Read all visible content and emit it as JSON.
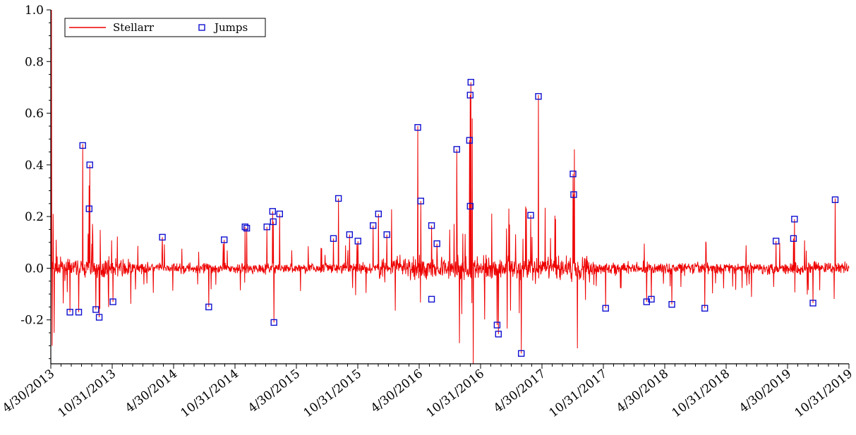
{
  "chart_data": {
    "type": "line",
    "title": "",
    "xlabel": "",
    "ylabel": "",
    "x_range": [
      "2013-04-30",
      "2019-10-31"
    ],
    "ylim": [
      -0.37,
      1.0
    ],
    "yticks": [
      1.0,
      0.8,
      0.6,
      0.4,
      0.2,
      0.0,
      -0.2
    ],
    "ytick_labels": [
      "1.0",
      "0.8",
      "0.6",
      "0.4",
      "0.2",
      "0.0",
      "-0.2"
    ],
    "xtick_labels": [
      "4/30/2013",
      "10/31/2013",
      "4/30/2014",
      "10/31/2014",
      "4/30/2015",
      "10/31/2015",
      "4/30/2016",
      "10/31/2016",
      "4/30/2017",
      "10/31/2017",
      "4/30/2018",
      "10/31/2018",
      "4/30/2019",
      "10/31/2019"
    ],
    "grid": false,
    "legend_position": "top-left",
    "series": [
      {
        "name": "Stellarr",
        "type": "line",
        "color": "#ee0000",
        "spikes": [
          {
            "x": "2013-05-02",
            "y": 1.0
          },
          {
            "x": "2013-05-04",
            "y": -0.3
          },
          {
            "x": "2013-05-07",
            "y": 0.21
          },
          {
            "x": "2013-05-10",
            "y": -0.25
          },
          {
            "x": "2013-05-16",
            "y": 0.11
          },
          {
            "x": "2013-08-03",
            "y": 0.48
          },
          {
            "x": "2013-08-24",
            "y": 0.4
          },
          {
            "x": "2013-08-22",
            "y": 0.32
          },
          {
            "x": "2016-04-26",
            "y": 0.55
          },
          {
            "x": "2016-08-20",
            "y": 0.46
          },
          {
            "x": "2016-08-28",
            "y": -0.29
          },
          {
            "x": "2016-10-01",
            "y": 0.72
          },
          {
            "x": "2016-10-05",
            "y": 0.58
          },
          {
            "x": "2016-10-08",
            "y": -0.37
          },
          {
            "x": "2017-02-28",
            "y": -0.33
          },
          {
            "x": "2017-04-20",
            "y": 0.67
          },
          {
            "x": "2017-08-05",
            "y": 0.46
          },
          {
            "x": "2017-08-14",
            "y": -0.31
          },
          {
            "x": "2019-09-20",
            "y": 0.27
          }
        ],
        "noise_amplitude_by_period": [
          {
            "from": "2013-04-30",
            "to": "2014-01-01",
            "amp": 0.06
          },
          {
            "from": "2014-01-01",
            "to": "2016-01-01",
            "amp": 0.035
          },
          {
            "from": "2016-01-01",
            "to": "2017-10-01",
            "amp": 0.08
          },
          {
            "from": "2017-10-01",
            "to": "2019-10-31",
            "amp": 0.04
          }
        ]
      },
      {
        "name": "Jumps",
        "type": "scatter",
        "marker": "square",
        "color": "#1010d0",
        "points": [
          {
            "x": "2013-08-03",
            "y": 0.475
          },
          {
            "x": "2013-08-24",
            "y": 0.4
          },
          {
            "x": "2013-08-22",
            "y": 0.23
          },
          {
            "x": "2013-06-26",
            "y": -0.17
          },
          {
            "x": "2013-07-22",
            "y": -0.17
          },
          {
            "x": "2013-09-11",
            "y": -0.16
          },
          {
            "x": "2013-09-21",
            "y": -0.19
          },
          {
            "x": "2013-11-01",
            "y": -0.13
          },
          {
            "x": "2014-03-28",
            "y": 0.12
          },
          {
            "x": "2014-08-13",
            "y": -0.15
          },
          {
            "x": "2014-09-28",
            "y": 0.11
          },
          {
            "x": "2014-11-29",
            "y": 0.16
          },
          {
            "x": "2014-12-04",
            "y": 0.155
          },
          {
            "x": "2015-02-02",
            "y": 0.16
          },
          {
            "x": "2015-02-19",
            "y": 0.22
          },
          {
            "x": "2015-02-21",
            "y": 0.18
          },
          {
            "x": "2015-02-23",
            "y": -0.21
          },
          {
            "x": "2015-03-12",
            "y": 0.21
          },
          {
            "x": "2015-08-19",
            "y": 0.115
          },
          {
            "x": "2015-09-03",
            "y": 0.27
          },
          {
            "x": "2015-10-06",
            "y": 0.13
          },
          {
            "x": "2015-10-31",
            "y": 0.105
          },
          {
            "x": "2015-12-15",
            "y": 0.165
          },
          {
            "x": "2015-12-31",
            "y": 0.21
          },
          {
            "x": "2016-01-25",
            "y": 0.13
          },
          {
            "x": "2016-04-26",
            "y": 0.545
          },
          {
            "x": "2016-05-05",
            "y": 0.26
          },
          {
            "x": "2016-06-06",
            "y": 0.165
          },
          {
            "x": "2016-06-06",
            "y": -0.12
          },
          {
            "x": "2016-06-22",
            "y": 0.095
          },
          {
            "x": "2016-08-20",
            "y": 0.46
          },
          {
            "x": "2016-10-01",
            "y": 0.72
          },
          {
            "x": "2016-09-29",
            "y": 0.67
          },
          {
            "x": "2016-09-27",
            "y": 0.495
          },
          {
            "x": "2016-09-29",
            "y": 0.24
          },
          {
            "x": "2016-12-18",
            "y": -0.22
          },
          {
            "x": "2016-12-22",
            "y": -0.255
          },
          {
            "x": "2017-02-28",
            "y": -0.33
          },
          {
            "x": "2017-03-28",
            "y": 0.205
          },
          {
            "x": "2017-04-20",
            "y": 0.665
          },
          {
            "x": "2017-08-01",
            "y": 0.365
          },
          {
            "x": "2017-08-03",
            "y": 0.285
          },
          {
            "x": "2017-11-06",
            "y": -0.155
          },
          {
            "x": "2018-03-08",
            "y": -0.13
          },
          {
            "x": "2018-03-22",
            "y": -0.12
          },
          {
            "x": "2018-05-22",
            "y": -0.14
          },
          {
            "x": "2018-08-28",
            "y": -0.155
          },
          {
            "x": "2019-03-28",
            "y": 0.105
          },
          {
            "x": "2019-05-19",
            "y": 0.115
          },
          {
            "x": "2019-05-22",
            "y": 0.19
          },
          {
            "x": "2019-07-16",
            "y": -0.135
          },
          {
            "x": "2019-09-20",
            "y": 0.265
          }
        ]
      }
    ]
  }
}
